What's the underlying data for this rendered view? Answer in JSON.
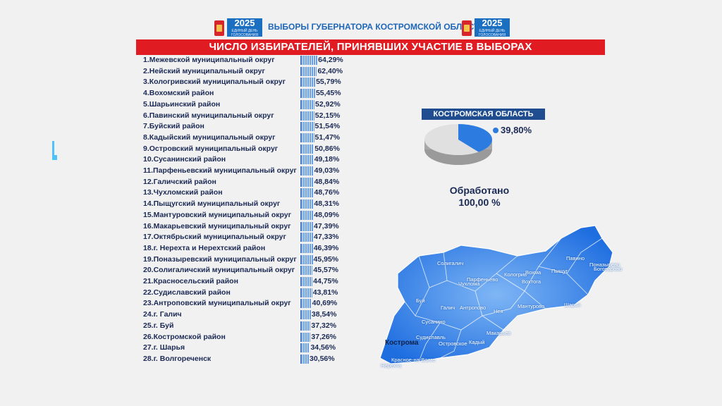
{
  "header": {
    "title": "ВЫБОРЫ ГУБЕРНАТОРА КОСТРОМСКОЙ ОБЛАСТИ",
    "logo_year": "2025",
    "logo_sub": "ЕДИНЫЙ ДЕНЬ ГОЛОСОВАНИЯ"
  },
  "chart_data": {
    "type": "bar",
    "title": "ЧИСЛО ИЗБИРАТЕЛЕЙ, ПРИНЯВШИХ УЧАСТИЕ В ВЫБОРАХ",
    "categories": [
      "1.Межевской муниципальный округ",
      "2.Нейский муниципальный округ",
      "3.Кологривский муниципальный округ",
      "4.Вохомский район",
      "5.Шарьинский район",
      "6.Павинский муниципальный округ",
      "7.Буйский район",
      "8.Кадыйский муниципальный округ",
      "9.Островский муниципальный округ",
      "10.Сусанинский район",
      "11.Парфеньевский муниципальный округ",
      "12.Галичский район",
      "13.Чухломский район",
      "14.Пыщугский муниципальный округ",
      "15.Мантуровский муниципальный округ",
      "16.Макарьевский муниципальный округ",
      "17.Октябрьский муниципальный округ",
      "18.г. Нерехта и Нерехтский район",
      "19.Поназыревский муниципальный округ",
      "20.Солигаличский муниципальный округ",
      "21.Красносельский район",
      "22.Судиславский район",
      "23.Антроповский муниципальный округ",
      "24.г. Галич",
      "25.г. Буй",
      "26.Костромской район",
      "27.г. Шарья",
      "28.г. Волгореченск"
    ],
    "values": [
      64.29,
      62.4,
      55.79,
      55.45,
      52.92,
      52.15,
      51.54,
      51.47,
      50.86,
      49.18,
      49.03,
      48.84,
      48.76,
      48.31,
      48.09,
      47.39,
      47.33,
      46.39,
      45.95,
      45.57,
      44.75,
      43.81,
      40.69,
      38.54,
      37.32,
      37.26,
      34.56,
      30.56
    ],
    "value_labels": [
      "64,29%",
      "62,40%",
      "55,79%",
      "55,45%",
      "52,92%",
      "52,15%",
      "51,54%",
      "51,47%",
      "50,86%",
      "49,18%",
      "49,03%",
      "48,84%",
      "48,76%",
      "48,31%",
      "48,09%",
      "47,39%",
      "47,33%",
      "46,39%",
      "45,95%",
      "45,57%",
      "44,75%",
      "43,81%",
      "40,69%",
      "38,54%",
      "37,32%",
      "37,26%",
      "34,56%",
      "30,56%"
    ],
    "bar_color": "#6a9ee0"
  },
  "region": {
    "name": "КОСТРОМСКАЯ ОБЛАСТЬ",
    "turnout": 39.8,
    "turnout_label": "39,80%",
    "slice_color": "#2b7be0"
  },
  "processed": {
    "label": "Обработано",
    "value": "100,00 %"
  },
  "map_labels": [
    "Солигалич",
    "Чухлома",
    "Кологрив",
    "Вохма",
    "Павино",
    "Пыщуг",
    "Поназырево",
    "Буй",
    "Галич",
    "Парфеньево",
    "Антропово",
    "Нея",
    "Мантурово",
    "Шарья",
    "Сусанино",
    "Судиславль",
    "Островское",
    "Кадый",
    "Макарьев",
    "Кострома",
    "Красное-на-Волге",
    "Нерехта",
    "Вохтога",
    "Боговарово"
  ],
  "map_city": "Кострома"
}
